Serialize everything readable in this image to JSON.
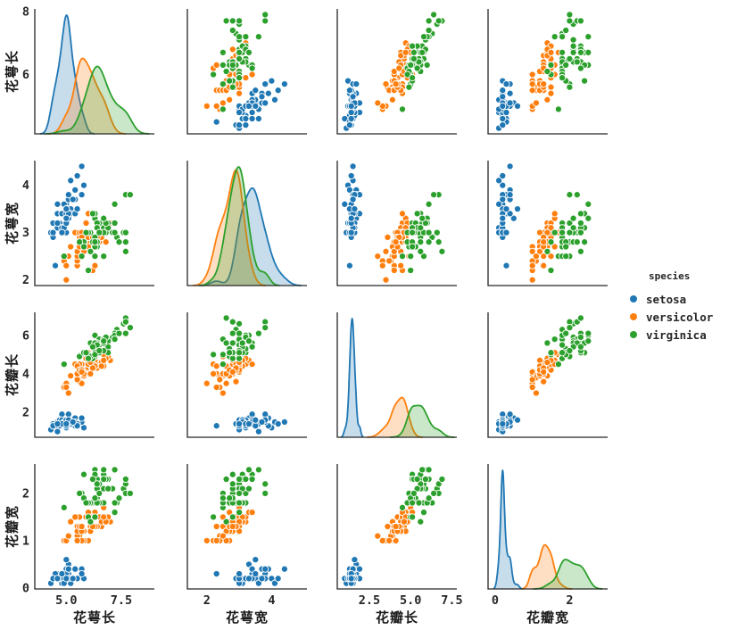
{
  "figure": {
    "background": "#ffffff",
    "spine_color": "#262626",
    "tick_color": "#262626",
    "label_color": "#1a1a1a"
  },
  "legend": {
    "title": "species",
    "items": [
      {
        "label": "setosa",
        "color": "#1f77b4"
      },
      {
        "label": "versicolor",
        "color": "#ff7f0e"
      },
      {
        "label": "virginica",
        "color": "#2ca02c"
      }
    ]
  },
  "chart_data": {
    "type": "scatter",
    "layout": {
      "kind": "pairplot-4x4",
      "diagonal": "kde",
      "grid": false,
      "legend_position": "right-center"
    },
    "variables": [
      {
        "key": "sepal_length",
        "label": "花萼长",
        "xlim": [
          3.57,
          9.0
        ],
        "ylim": [
          4.12,
          8.08
        ],
        "x_ticks": [
          5.0,
          7.5
        ],
        "x_tick_labels": [
          "5.0",
          "7.5"
        ],
        "y_ticks": [
          6,
          8
        ],
        "y_tick_labels": [
          "6",
          "8"
        ]
      },
      {
        "key": "sepal_width",
        "label": "花萼宽",
        "xlim": [
          1.4,
          5.09
        ],
        "ylim": [
          1.88,
          4.52
        ],
        "x_ticks": [
          2,
          4
        ],
        "x_tick_labels": [
          "2",
          "4"
        ],
        "y_ticks": [
          2,
          3,
          4
        ],
        "y_tick_labels": [
          "2",
          "3",
          "4"
        ]
      },
      {
        "key": "petal_length",
        "label": "花瓣长",
        "xlim": [
          0.55,
          7.8
        ],
        "ylim": [
          0.705,
          7.195
        ],
        "x_ticks": [
          2.5,
          5.0,
          7.5
        ],
        "x_tick_labels": [
          "2.5",
          "5.0",
          "7.5"
        ],
        "y_ticks": [
          2,
          4,
          6
        ],
        "y_tick_labels": [
          "2",
          "4",
          "6"
        ]
      },
      {
        "key": "petal_width",
        "label": "花瓣宽",
        "xlim": [
          -0.19,
          3.02
        ],
        "ylim": [
          -0.02,
          2.62
        ],
        "x_ticks": [
          0,
          2
        ],
        "x_tick_labels": [
          "0",
          "2"
        ],
        "y_ticks": [
          0,
          1,
          2
        ],
        "y_tick_labels": [
          "0",
          "1",
          "2"
        ]
      }
    ],
    "series": [
      {
        "name": "setosa",
        "color": "#1f77b4",
        "data": [
          [
            5.1,
            3.5,
            1.4,
            0.2
          ],
          [
            4.9,
            3.0,
            1.4,
            0.2
          ],
          [
            4.7,
            3.2,
            1.3,
            0.2
          ],
          [
            4.6,
            3.1,
            1.5,
            0.2
          ],
          [
            5.0,
            3.6,
            1.4,
            0.2
          ],
          [
            5.4,
            3.9,
            1.7,
            0.4
          ],
          [
            4.6,
            3.4,
            1.4,
            0.3
          ],
          [
            5.0,
            3.4,
            1.5,
            0.2
          ],
          [
            4.4,
            2.9,
            1.4,
            0.2
          ],
          [
            4.9,
            3.1,
            1.5,
            0.1
          ],
          [
            5.4,
            3.7,
            1.5,
            0.2
          ],
          [
            4.8,
            3.4,
            1.6,
            0.2
          ],
          [
            4.8,
            3.0,
            1.4,
            0.1
          ],
          [
            4.3,
            3.0,
            1.1,
            0.1
          ],
          [
            5.8,
            4.0,
            1.2,
            0.2
          ],
          [
            5.7,
            4.4,
            1.5,
            0.4
          ],
          [
            5.4,
            3.9,
            1.3,
            0.4
          ],
          [
            5.1,
            3.5,
            1.4,
            0.3
          ],
          [
            5.7,
            3.8,
            1.7,
            0.3
          ],
          [
            5.1,
            3.8,
            1.5,
            0.3
          ],
          [
            5.4,
            3.4,
            1.7,
            0.2
          ],
          [
            5.1,
            3.7,
            1.5,
            0.4
          ],
          [
            4.6,
            3.6,
            1.0,
            0.2
          ],
          [
            5.1,
            3.3,
            1.7,
            0.5
          ],
          [
            4.8,
            3.4,
            1.9,
            0.2
          ],
          [
            5.0,
            3.0,
            1.6,
            0.2
          ],
          [
            5.0,
            3.4,
            1.6,
            0.4
          ],
          [
            5.2,
            3.5,
            1.5,
            0.2
          ],
          [
            5.2,
            3.4,
            1.4,
            0.2
          ],
          [
            4.7,
            3.2,
            1.6,
            0.2
          ],
          [
            4.8,
            3.1,
            1.6,
            0.2
          ],
          [
            5.4,
            3.4,
            1.5,
            0.4
          ],
          [
            5.2,
            4.1,
            1.5,
            0.1
          ],
          [
            5.5,
            4.2,
            1.4,
            0.2
          ],
          [
            4.9,
            3.1,
            1.5,
            0.2
          ],
          [
            5.0,
            3.2,
            1.2,
            0.2
          ],
          [
            5.5,
            3.5,
            1.3,
            0.2
          ],
          [
            4.9,
            3.6,
            1.4,
            0.1
          ],
          [
            4.4,
            3.0,
            1.3,
            0.2
          ],
          [
            5.1,
            3.4,
            1.5,
            0.2
          ],
          [
            5.0,
            3.5,
            1.3,
            0.3
          ],
          [
            4.5,
            2.3,
            1.3,
            0.3
          ],
          [
            4.4,
            3.2,
            1.3,
            0.2
          ],
          [
            5.0,
            3.5,
            1.6,
            0.6
          ],
          [
            5.1,
            3.8,
            1.9,
            0.4
          ],
          [
            4.8,
            3.0,
            1.4,
            0.3
          ],
          [
            5.1,
            3.8,
            1.6,
            0.2
          ],
          [
            4.6,
            3.2,
            1.4,
            0.2
          ],
          [
            5.3,
            3.7,
            1.5,
            0.2
          ],
          [
            5.0,
            3.3,
            1.4,
            0.2
          ]
        ]
      },
      {
        "name": "versicolor",
        "color": "#ff7f0e",
        "data": [
          [
            7.0,
            3.2,
            4.7,
            1.4
          ],
          [
            6.4,
            3.2,
            4.5,
            1.5
          ],
          [
            6.9,
            3.1,
            4.9,
            1.5
          ],
          [
            5.5,
            2.3,
            4.0,
            1.3
          ],
          [
            6.5,
            2.8,
            4.6,
            1.5
          ],
          [
            5.7,
            2.8,
            4.5,
            1.3
          ],
          [
            6.3,
            3.3,
            4.7,
            1.6
          ],
          [
            4.9,
            2.4,
            3.3,
            1.0
          ],
          [
            6.6,
            2.9,
            4.6,
            1.3
          ],
          [
            5.2,
            2.7,
            3.9,
            1.4
          ],
          [
            5.0,
            2.0,
            3.5,
            1.0
          ],
          [
            5.9,
            3.0,
            4.2,
            1.5
          ],
          [
            6.0,
            2.2,
            4.0,
            1.0
          ],
          [
            6.1,
            2.9,
            4.7,
            1.4
          ],
          [
            5.6,
            2.9,
            3.6,
            1.3
          ],
          [
            6.7,
            3.1,
            4.4,
            1.4
          ],
          [
            5.6,
            3.0,
            4.5,
            1.5
          ],
          [
            5.8,
            2.7,
            4.1,
            1.0
          ],
          [
            6.2,
            2.2,
            4.5,
            1.5
          ],
          [
            5.6,
            2.5,
            3.9,
            1.1
          ],
          [
            5.9,
            3.2,
            4.8,
            1.8
          ],
          [
            6.1,
            2.8,
            4.0,
            1.3
          ],
          [
            6.3,
            2.5,
            4.9,
            1.5
          ],
          [
            6.1,
            2.8,
            4.7,
            1.2
          ],
          [
            6.4,
            2.9,
            4.3,
            1.3
          ],
          [
            6.6,
            3.0,
            4.4,
            1.4
          ],
          [
            6.8,
            2.8,
            4.8,
            1.4
          ],
          [
            6.7,
            3.0,
            5.0,
            1.7
          ],
          [
            6.0,
            2.9,
            4.5,
            1.5
          ],
          [
            5.7,
            2.6,
            3.5,
            1.0
          ],
          [
            5.5,
            2.4,
            3.8,
            1.1
          ],
          [
            5.5,
            2.4,
            3.7,
            1.0
          ],
          [
            5.8,
            2.7,
            3.9,
            1.2
          ],
          [
            6.0,
            2.7,
            5.1,
            1.6
          ],
          [
            5.4,
            3.0,
            4.5,
            1.5
          ],
          [
            6.0,
            3.4,
            4.5,
            1.6
          ],
          [
            6.7,
            3.1,
            4.7,
            1.5
          ],
          [
            6.3,
            2.3,
            4.4,
            1.3
          ],
          [
            5.6,
            3.0,
            4.1,
            1.3
          ],
          [
            5.5,
            2.5,
            4.0,
            1.3
          ],
          [
            5.5,
            2.6,
            4.4,
            1.2
          ],
          [
            6.1,
            3.0,
            4.6,
            1.4
          ],
          [
            5.8,
            2.6,
            4.0,
            1.2
          ],
          [
            5.0,
            2.3,
            3.3,
            1.0
          ],
          [
            5.6,
            2.7,
            4.2,
            1.3
          ],
          [
            5.7,
            3.0,
            4.2,
            1.2
          ],
          [
            5.7,
            2.9,
            4.2,
            1.3
          ],
          [
            6.2,
            2.9,
            4.3,
            1.3
          ],
          [
            5.1,
            2.5,
            3.0,
            1.1
          ],
          [
            5.7,
            2.8,
            4.1,
            1.3
          ]
        ]
      },
      {
        "name": "virginica",
        "color": "#2ca02c",
        "data": [
          [
            6.3,
            3.3,
            6.0,
            2.5
          ],
          [
            5.8,
            2.7,
            5.1,
            1.9
          ],
          [
            7.1,
            3.0,
            5.9,
            2.1
          ],
          [
            6.3,
            2.9,
            5.6,
            1.8
          ],
          [
            6.5,
            3.0,
            5.8,
            2.2
          ],
          [
            7.6,
            3.0,
            6.6,
            2.1
          ],
          [
            4.9,
            2.5,
            4.5,
            1.7
          ],
          [
            7.3,
            2.9,
            6.3,
            1.8
          ],
          [
            6.7,
            2.5,
            5.8,
            1.8
          ],
          [
            7.2,
            3.6,
            6.1,
            2.5
          ],
          [
            6.5,
            3.2,
            5.1,
            2.0
          ],
          [
            6.4,
            2.7,
            5.3,
            1.9
          ],
          [
            6.8,
            3.0,
            5.5,
            2.1
          ],
          [
            5.7,
            2.5,
            5.0,
            2.0
          ],
          [
            5.8,
            2.8,
            5.1,
            2.4
          ],
          [
            6.4,
            3.2,
            5.3,
            2.3
          ],
          [
            6.5,
            3.0,
            5.5,
            1.8
          ],
          [
            7.7,
            3.8,
            6.7,
            2.2
          ],
          [
            7.7,
            2.6,
            6.9,
            2.3
          ],
          [
            6.0,
            2.2,
            5.0,
            1.5
          ],
          [
            6.9,
            3.2,
            5.7,
            2.3
          ],
          [
            5.6,
            2.8,
            4.9,
            2.0
          ],
          [
            7.7,
            2.8,
            6.7,
            2.0
          ],
          [
            6.3,
            2.7,
            4.9,
            1.8
          ],
          [
            6.7,
            3.3,
            5.7,
            2.1
          ],
          [
            7.2,
            3.2,
            6.0,
            1.8
          ],
          [
            6.2,
            2.8,
            4.8,
            1.8
          ],
          [
            6.1,
            3.0,
            4.9,
            1.8
          ],
          [
            6.4,
            2.8,
            5.6,
            2.1
          ],
          [
            7.2,
            3.0,
            5.8,
            1.6
          ],
          [
            7.4,
            2.8,
            6.1,
            1.9
          ],
          [
            7.9,
            3.8,
            6.4,
            2.0
          ],
          [
            6.4,
            2.8,
            5.6,
            2.2
          ],
          [
            6.3,
            2.8,
            5.1,
            1.5
          ],
          [
            6.1,
            2.6,
            5.6,
            1.4
          ],
          [
            7.7,
            3.0,
            6.1,
            2.3
          ],
          [
            6.3,
            3.4,
            5.6,
            2.4
          ],
          [
            6.4,
            3.1,
            5.5,
            1.8
          ],
          [
            6.0,
            3.0,
            4.8,
            1.8
          ],
          [
            6.9,
            3.1,
            5.4,
            2.1
          ],
          [
            6.7,
            3.1,
            5.6,
            2.4
          ],
          [
            6.9,
            3.1,
            5.1,
            2.3
          ],
          [
            5.8,
            2.7,
            5.1,
            1.9
          ],
          [
            6.8,
            3.2,
            5.9,
            2.3
          ],
          [
            6.7,
            3.3,
            5.7,
            2.5
          ],
          [
            6.7,
            3.0,
            5.2,
            2.3
          ],
          [
            6.3,
            2.5,
            5.0,
            1.9
          ],
          [
            6.5,
            3.0,
            5.2,
            2.0
          ],
          [
            6.2,
            3.4,
            5.4,
            2.3
          ],
          [
            5.9,
            3.0,
            5.1,
            1.8
          ]
        ]
      }
    ]
  }
}
